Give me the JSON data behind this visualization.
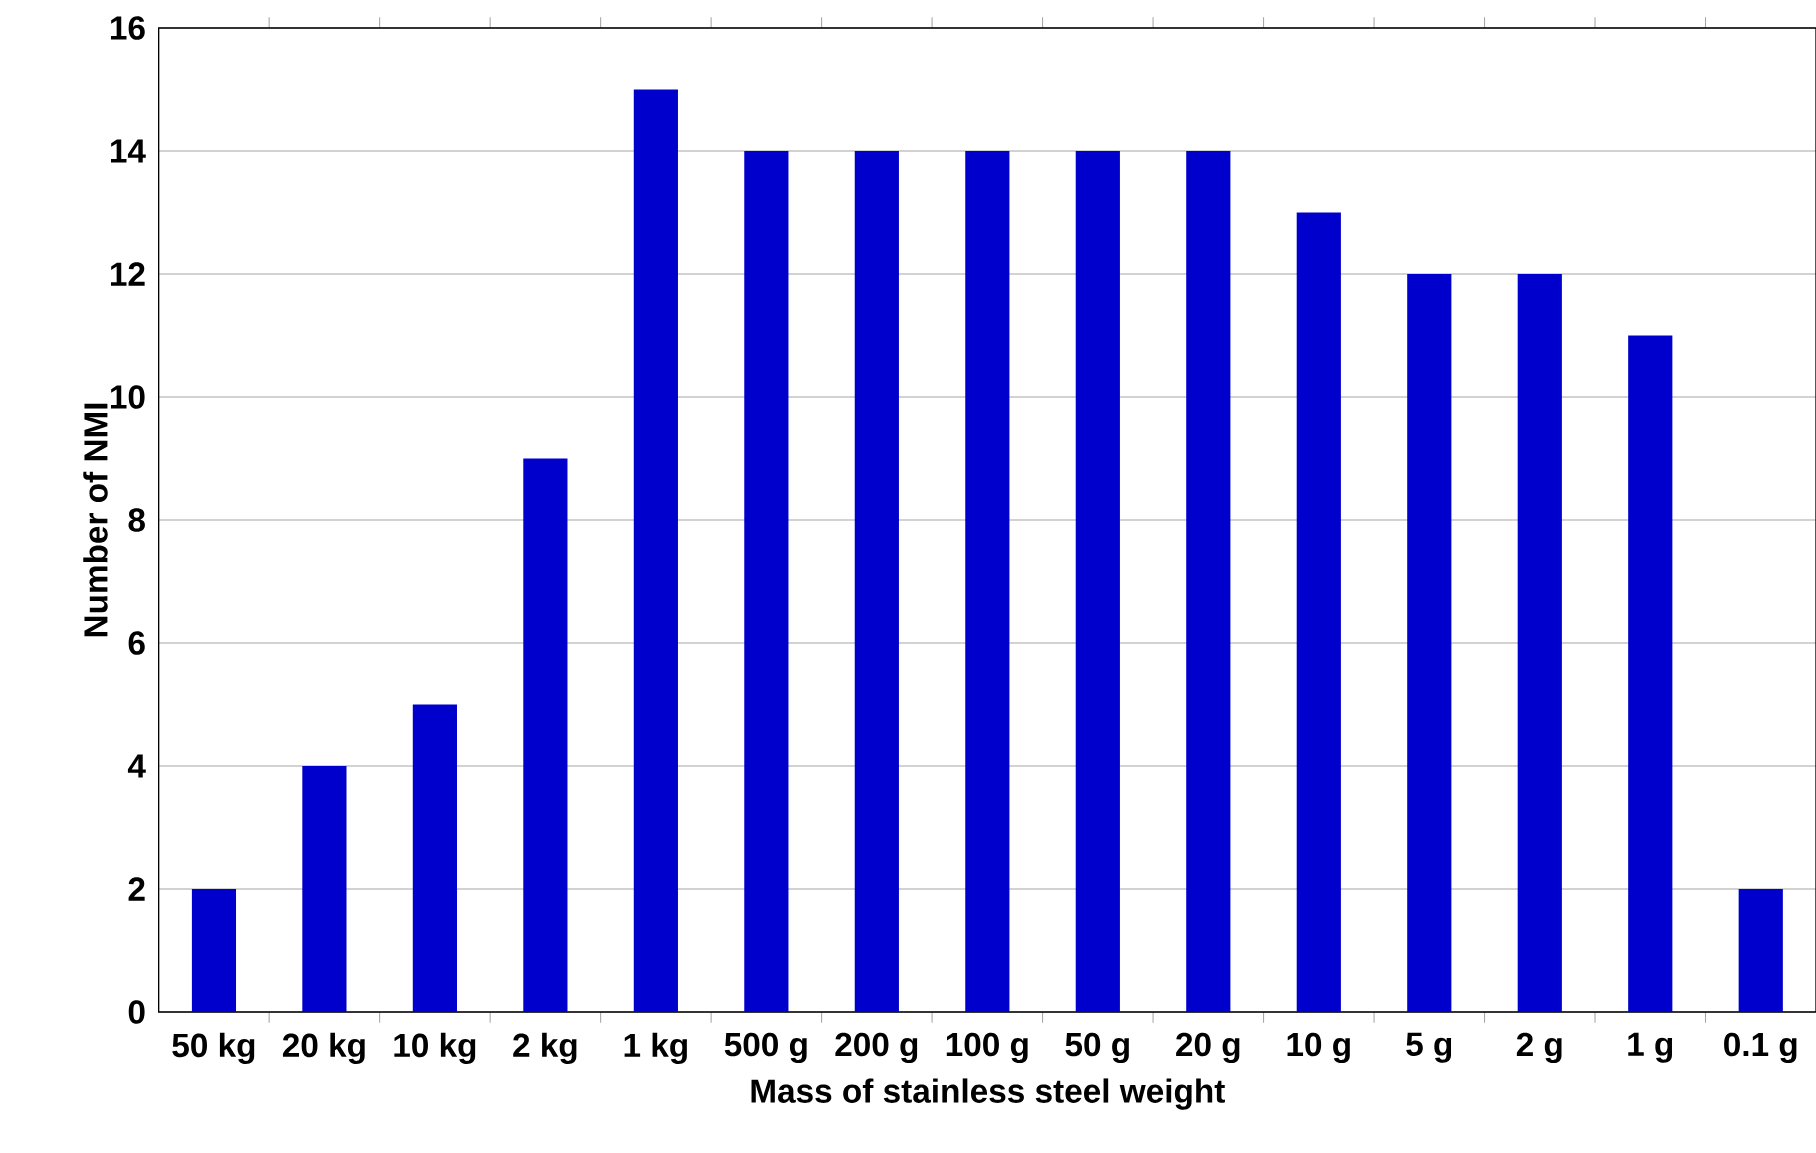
{
  "chart_data": {
    "type": "bar",
    "xlabel": "Mass of stainless steel weight",
    "ylabel": "Number of NMI",
    "categories": [
      "50 kg",
      "20 kg",
      "10 kg",
      "2 kg",
      "1 kg",
      "500 g",
      "200 g",
      "100 g",
      "50 g",
      "20 g",
      "10 g",
      "5 g",
      "2 g",
      "1 g",
      "0.1 g"
    ],
    "values": [
      2,
      4,
      5,
      9,
      15,
      14,
      14,
      14,
      14,
      14,
      13,
      12,
      12,
      11,
      2
    ],
    "color": "#0000cc",
    "ylim": [
      0,
      16
    ],
    "yticks": [
      0,
      2,
      4,
      6,
      8,
      10,
      12,
      14,
      16
    ],
    "grid": "y"
  }
}
